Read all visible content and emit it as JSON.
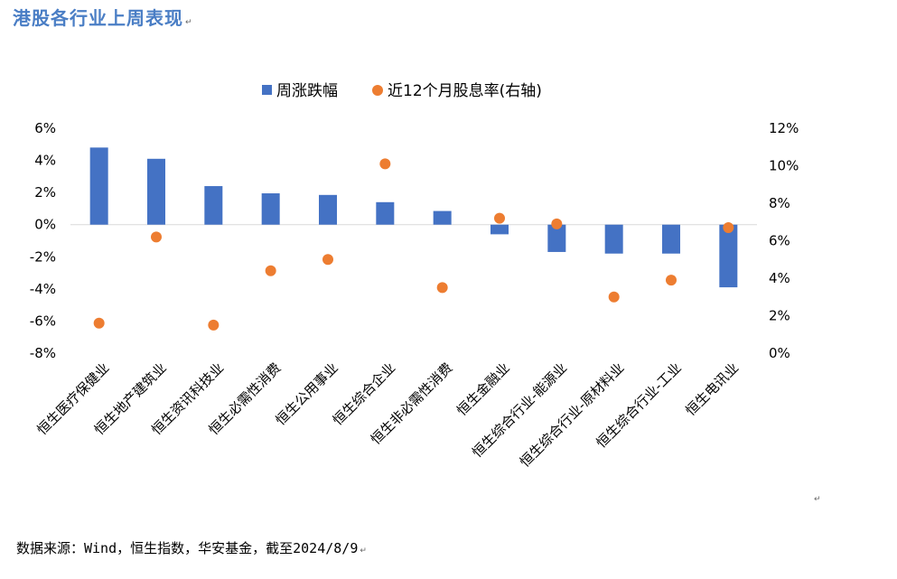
{
  "title": "港股各行业上周表现",
  "para_mark": "↵",
  "source": "数据来源：Wind，恒生指数，华安基金，截至2024/8/9",
  "colors": {
    "bar": "#4472c4",
    "dot": "#ed7d31",
    "axis": "#d9d9d9",
    "title": "#4a7ec5"
  },
  "chart_data": {
    "type": "bar",
    "categories": [
      "恒生医疗保健业",
      "恒生地产建筑业",
      "恒生资讯科技业",
      "恒生必需性消费",
      "恒生公用事业",
      "恒生综合企业",
      "恒生非必需性消费",
      "恒生金融业",
      "恒生综合行业-能源业",
      "恒生综合行业-原材料业",
      "恒生综合行业-工业",
      "恒生电讯业"
    ],
    "series": [
      {
        "name": "周涨跌幅",
        "type": "bar",
        "axis": "left",
        "values": [
          4.8,
          4.1,
          2.4,
          1.95,
          1.85,
          1.4,
          0.85,
          -0.6,
          -1.7,
          -1.8,
          -1.8,
          -3.9
        ]
      },
      {
        "name": "近12个月股息率(右轴)",
        "type": "scatter",
        "axis": "right",
        "values": [
          1.6,
          6.2,
          1.5,
          4.4,
          5.0,
          10.1,
          3.5,
          7.2,
          6.9,
          3.0,
          3.9,
          6.7
        ]
      }
    ],
    "y_left": {
      "min": -8,
      "max": 6,
      "step": 2,
      "ticks": [
        "6%",
        "4%",
        "2%",
        "0%",
        "-2%",
        "-4%",
        "-6%",
        "-8%"
      ]
    },
    "y_right": {
      "min": 0,
      "max": 12,
      "step": 2,
      "ticks": [
        "12%",
        "10%",
        "8%",
        "6%",
        "4%",
        "2%",
        "0%"
      ]
    },
    "legend_position": "top-center",
    "grid": false
  }
}
